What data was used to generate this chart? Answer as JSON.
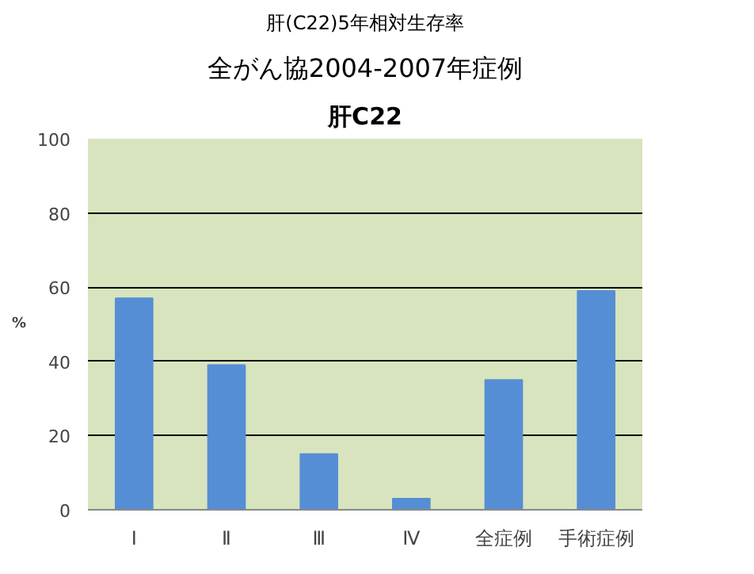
{
  "chart_data": {
    "type": "bar",
    "title": "肝(C22)5年相対生存率",
    "subtitle": "全がん協2004-2007年症例",
    "annotations": [
      "肝C22"
    ],
    "ylabel": "%",
    "categories": [
      "Ⅰ",
      "Ⅱ",
      "Ⅲ",
      "Ⅳ",
      "全症例",
      "手術症例"
    ],
    "values": [
      57,
      39,
      15,
      3,
      35,
      59
    ],
    "color": "#558ed5",
    "ylim": [
      0,
      100
    ],
    "yticks": [
      0,
      20,
      40,
      60,
      80,
      100
    ],
    "grid": "y"
  }
}
